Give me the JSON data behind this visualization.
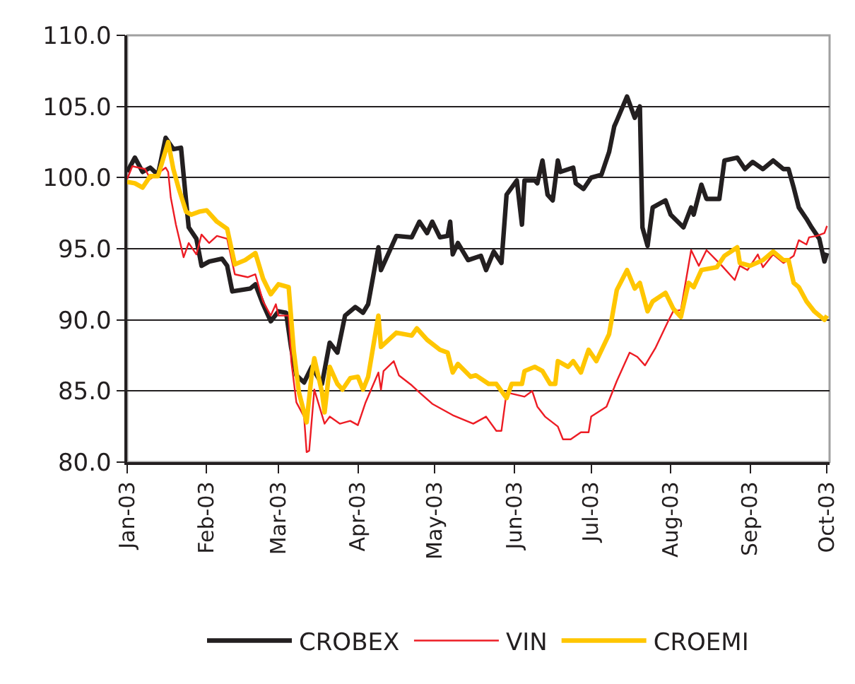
{
  "chart_data": {
    "type": "line",
    "xlim": [
      "2003-01-01",
      "2003-10-02"
    ],
    "xticks": [
      {
        "value": "2003-01-01",
        "label": "Jan-03"
      },
      {
        "value": "2003-02-01",
        "label": "Feb-03"
      },
      {
        "value": "2003-03-01",
        "label": "Mar-03"
      },
      {
        "value": "2003-04-01",
        "label": "Apr-03"
      },
      {
        "value": "2003-05-01",
        "label": "May-03"
      },
      {
        "value": "2003-06-01",
        "label": "Jun-03"
      },
      {
        "value": "2003-07-01",
        "label": "Jul-03"
      },
      {
        "value": "2003-08-01",
        "label": "Aug-03"
      },
      {
        "value": "2003-09-01",
        "label": "Sep-03"
      },
      {
        "value": "2003-10-01",
        "label": "Oct-03"
      }
    ],
    "ylim": [
      80,
      110
    ],
    "yticks": [
      {
        "value": 80,
        "label": "80.0"
      },
      {
        "value": 85,
        "label": "85.0"
      },
      {
        "value": 90,
        "label": "90.0"
      },
      {
        "value": 95,
        "label": "95.0"
      },
      {
        "value": 100,
        "label": "100.0"
      },
      {
        "value": 105,
        "label": "105.0"
      },
      {
        "value": 110,
        "label": "110.0"
      }
    ],
    "grid": "y",
    "legend": "bottom",
    "marker": "none",
    "line_style": "solid",
    "series": [
      {
        "name": "CROBEX",
        "color": "#231f20",
        "x": [
          "2003-01-01",
          "2003-01-04",
          "2003-01-07",
          "2003-01-10",
          "2003-01-13",
          "2003-01-16",
          "2003-01-19",
          "2003-01-22",
          "2003-01-24",
          "2003-01-25",
          "2003-01-28",
          "2003-01-30",
          "2003-02-02",
          "2003-02-07",
          "2003-02-09",
          "2003-02-11",
          "2003-02-18",
          "2003-02-20",
          "2003-02-23",
          "2003-02-26",
          "2003-03-01",
          "2003-03-04",
          "2003-03-06",
          "2003-03-08",
          "2003-03-11",
          "2003-03-14",
          "2003-03-18",
          "2003-03-21",
          "2003-03-24",
          "2003-03-27",
          "2003-03-31",
          "2003-04-03",
          "2003-04-05",
          "2003-04-09",
          "2003-04-10",
          "2003-04-16",
          "2003-04-22",
          "2003-04-25",
          "2003-04-28",
          "2003-04-30",
          "2003-05-03",
          "2003-05-06",
          "2003-05-07",
          "2003-05-08",
          "2003-05-10",
          "2003-05-14",
          "2003-05-19",
          "2003-05-21",
          "2003-05-24",
          "2003-05-27",
          "2003-05-29",
          "2003-06-02",
          "2003-06-04",
          "2003-06-05",
          "2003-06-09",
          "2003-06-10",
          "2003-06-12",
          "2003-06-14",
          "2003-06-16",
          "2003-06-18",
          "2003-06-19",
          "2003-06-24",
          "2003-06-25",
          "2003-06-28",
          "2003-07-01",
          "2003-07-05",
          "2003-07-08",
          "2003-07-10",
          "2003-07-11",
          "2003-07-15",
          "2003-07-18",
          "2003-07-20",
          "2003-07-21",
          "2003-07-23",
          "2003-07-25",
          "2003-07-30",
          "2003-08-01",
          "2003-08-06",
          "2003-08-09",
          "2003-08-10",
          "2003-08-13",
          "2003-08-15",
          "2003-08-20",
          "2003-08-22",
          "2003-08-27",
          "2003-08-30",
          "2003-09-02",
          "2003-09-06",
          "2003-09-10",
          "2003-09-14",
          "2003-09-16",
          "2003-09-18",
          "2003-09-20",
          "2003-09-23",
          "2003-09-25",
          "2003-09-28",
          "2003-09-30",
          "2003-10-01"
        ],
        "values": [
          100.4,
          101.4,
          100.4,
          100.7,
          100.2,
          102.8,
          102.0,
          102.1,
          98.3,
          96.5,
          95.7,
          93.8,
          94.1,
          94.3,
          93.8,
          92.0,
          92.2,
          92.5,
          91.1,
          89.9,
          90.6,
          90.5,
          88.0,
          86.1,
          85.6,
          86.7,
          85.5,
          88.4,
          87.7,
          90.3,
          90.9,
          90.5,
          91.1,
          95.1,
          93.5,
          95.9,
          95.8,
          96.9,
          96.1,
          96.9,
          95.8,
          95.9,
          96.9,
          94.6,
          95.4,
          94.2,
          94.5,
          93.5,
          94.8,
          94.0,
          98.8,
          99.8,
          96.7,
          99.8,
          99.8,
          99.6,
          101.2,
          98.8,
          98.4,
          101.2,
          100.4,
          100.7,
          99.6,
          99.2,
          100.0,
          100.2,
          101.8,
          103.6,
          104.0,
          105.7,
          104.2,
          105.0,
          96.5,
          95.2,
          97.9,
          98.4,
          97.4,
          96.5,
          97.9,
          97.4,
          99.5,
          98.5,
          98.5,
          101.2,
          101.4,
          100.6,
          101.1,
          100.6,
          101.2,
          100.6,
          100.6,
          99.3,
          97.9,
          97.1,
          96.5,
          95.7,
          94.1,
          94.7
        ]
      },
      {
        "name": "VIN",
        "color": "#ed1c24",
        "x": [
          "2003-01-01",
          "2003-01-03",
          "2003-01-08",
          "2003-01-10",
          "2003-01-16",
          "2003-01-17",
          "2003-01-18",
          "2003-01-20",
          "2003-01-23",
          "2003-01-25",
          "2003-01-28",
          "2003-01-30",
          "2003-02-02",
          "2003-02-05",
          "2003-02-09",
          "2003-02-12",
          "2003-02-17",
          "2003-02-20",
          "2003-02-23",
          "2003-02-26",
          "2003-02-28",
          "2003-03-01",
          "2003-03-05",
          "2003-03-06",
          "2003-03-08",
          "2003-03-11",
          "2003-03-12",
          "2003-03-13",
          "2003-03-15",
          "2003-03-19",
          "2003-03-21",
          "2003-03-25",
          "2003-03-29",
          "2003-04-01",
          "2003-04-04",
          "2003-04-09",
          "2003-04-10",
          "2003-04-11",
          "2003-04-15",
          "2003-04-17",
          "2003-04-22",
          "2003-04-25",
          "2003-04-30",
          "2003-05-06",
          "2003-05-08",
          "2003-05-16",
          "2003-05-21",
          "2003-05-25",
          "2003-05-27",
          "2003-05-29",
          "2003-06-05",
          "2003-06-08",
          "2003-06-10",
          "2003-06-13",
          "2003-06-18",
          "2003-06-20",
          "2003-06-23",
          "2003-06-27",
          "2003-06-30",
          "2003-07-01",
          "2003-07-07",
          "2003-07-11",
          "2003-07-16",
          "2003-07-19",
          "2003-07-22",
          "2003-07-26",
          "2003-07-31",
          "2003-08-02",
          "2003-08-05",
          "2003-08-09",
          "2003-08-12",
          "2003-08-15",
          "2003-08-21",
          "2003-08-26",
          "2003-08-28",
          "2003-08-31",
          "2003-09-04",
          "2003-09-06",
          "2003-09-10",
          "2003-09-14",
          "2003-09-18",
          "2003-09-20",
          "2003-09-23",
          "2003-09-24",
          "2003-09-27",
          "2003-09-30",
          "2003-10-01"
        ],
        "values": [
          99.9,
          100.8,
          100.6,
          99.9,
          100.7,
          100.4,
          98.6,
          96.7,
          94.4,
          95.4,
          94.6,
          96.0,
          95.4,
          95.9,
          95.7,
          93.2,
          93.0,
          93.2,
          91.3,
          90.3,
          91.1,
          90.3,
          90.3,
          87.1,
          84.2,
          83.2,
          80.7,
          80.8,
          85.1,
          82.7,
          83.2,
          82.7,
          82.9,
          82.6,
          84.2,
          86.3,
          85.1,
          86.4,
          87.1,
          86.1,
          85.4,
          84.9,
          84.1,
          83.5,
          83.3,
          82.7,
          83.2,
          82.2,
          82.2,
          84.9,
          84.6,
          85.0,
          83.9,
          83.2,
          82.5,
          81.6,
          81.6,
          82.1,
          82.1,
          83.2,
          83.9,
          85.7,
          87.7,
          87.4,
          86.8,
          88.0,
          89.9,
          90.6,
          90.7,
          94.9,
          93.8,
          94.9,
          93.8,
          92.8,
          93.8,
          93.5,
          94.6,
          93.7,
          94.6,
          94.0,
          94.5,
          95.6,
          95.3,
          95.8,
          95.9,
          96.1,
          96.6
        ]
      },
      {
        "name": "CROEMI",
        "color": "#ffc600",
        "x": [
          "2003-01-01",
          "2003-01-04",
          "2003-01-07",
          "2003-01-10",
          "2003-01-13",
          "2003-01-17",
          "2003-01-19",
          "2003-01-21",
          "2003-01-24",
          "2003-01-26",
          "2003-01-29",
          "2003-02-01",
          "2003-02-05",
          "2003-02-09",
          "2003-02-12",
          "2003-02-16",
          "2003-02-20",
          "2003-02-23",
          "2003-02-26",
          "2003-03-01",
          "2003-03-05",
          "2003-03-07",
          "2003-03-09",
          "2003-03-12",
          "2003-03-14",
          "2003-03-15",
          "2003-03-18",
          "2003-03-19",
          "2003-03-21",
          "2003-03-24",
          "2003-03-26",
          "2003-03-29",
          "2003-04-01",
          "2003-04-03",
          "2003-04-05",
          "2003-04-09",
          "2003-04-10",
          "2003-04-13",
          "2003-04-16",
          "2003-04-22",
          "2003-04-24",
          "2003-04-28",
          "2003-05-03",
          "2003-05-06",
          "2003-05-08",
          "2003-05-10",
          "2003-05-15",
          "2003-05-17",
          "2003-05-22",
          "2003-05-25",
          "2003-05-29",
          "2003-05-31",
          "2003-06-04",
          "2003-06-05",
          "2003-06-09",
          "2003-06-12",
          "2003-06-15",
          "2003-06-17",
          "2003-06-18",
          "2003-06-22",
          "2003-06-24",
          "2003-06-27",
          "2003-06-30",
          "2003-07-03",
          "2003-07-08",
          "2003-07-11",
          "2003-07-15",
          "2003-07-18",
          "2003-07-20",
          "2003-07-23",
          "2003-07-25",
          "2003-07-30",
          "2003-08-02",
          "2003-08-05",
          "2003-08-08",
          "2003-08-10",
          "2003-08-13",
          "2003-08-19",
          "2003-08-22",
          "2003-08-27",
          "2003-08-28",
          "2003-09-01",
          "2003-09-06",
          "2003-09-10",
          "2003-09-14",
          "2003-09-16",
          "2003-09-18",
          "2003-09-20",
          "2003-09-23",
          "2003-09-26",
          "2003-09-30",
          "2003-10-01"
        ],
        "values": [
          99.7,
          99.6,
          99.3,
          100.1,
          100.1,
          102.5,
          100.6,
          99.3,
          97.6,
          97.4,
          97.6,
          97.7,
          96.9,
          96.4,
          93.9,
          94.2,
          94.7,
          92.9,
          91.8,
          92.5,
          92.3,
          87.8,
          84.9,
          82.8,
          86.2,
          87.3,
          84.9,
          83.5,
          86.7,
          85.5,
          85.1,
          85.9,
          86.0,
          85.1,
          86.0,
          90.3,
          88.1,
          88.6,
          89.1,
          88.9,
          89.4,
          88.6,
          87.9,
          87.7,
          86.3,
          86.9,
          86.0,
          86.1,
          85.5,
          85.5,
          84.5,
          85.5,
          85.5,
          86.4,
          86.7,
          86.4,
          85.5,
          85.5,
          87.1,
          86.7,
          87.1,
          86.3,
          87.9,
          87.1,
          89.0,
          92.1,
          93.5,
          92.2,
          92.6,
          90.6,
          91.3,
          91.9,
          90.8,
          90.2,
          92.6,
          92.3,
          93.5,
          93.7,
          94.5,
          95.1,
          94.0,
          93.8,
          94.2,
          94.8,
          94.2,
          94.2,
          92.6,
          92.3,
          91.3,
          90.6,
          90.0,
          90.3
        ]
      }
    ]
  }
}
